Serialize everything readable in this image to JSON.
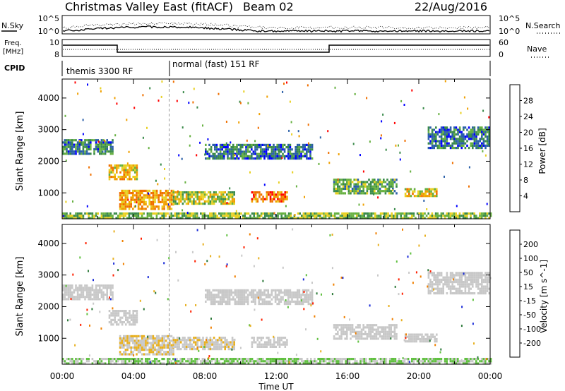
{
  "header": {
    "radar": "Christmas Valley East (fitACF)",
    "beam": "Beam 02",
    "date": "22/Aug/2016"
  },
  "noise_panel": {
    "left_label": "N.Sky",
    "right_label": "N.Search",
    "left_ticks": [
      "10^5",
      "10^0"
    ],
    "right_ticks": [
      "10^5",
      "10^0"
    ]
  },
  "freq_panel": {
    "left_label_1": "Freq.",
    "left_label_2": "[MHz]",
    "right_label": "Nave",
    "left_ticks": [
      "10",
      "8"
    ],
    "right_ticks": [
      "60",
      "0"
    ]
  },
  "cpid_panel": {
    "label": "CPID",
    "programs": [
      "themis 3300 RF",
      "normal (fast) 151 RF"
    ]
  },
  "colors": {
    "power_scale": [
      "#0000ff",
      "#2a5fa8",
      "#3a8a4a",
      "#66b040",
      "#e8d020",
      "#f0a000",
      "#f07000",
      "#ff0000"
    ],
    "velocity_scale": [
      "#1a2bd8",
      "#2d7a3a",
      "#60c040",
      "#c8c8c8",
      "#e8b020",
      "#f08000",
      "#ff2000"
    ]
  },
  "chart_data": [
    {
      "type": "heatmap",
      "name": "power",
      "ylabel": "Slant Range [km]",
      "yticks": [
        "1000",
        "2000",
        "3000",
        "4000"
      ],
      "ylim": [
        180,
        4600
      ],
      "colorbar_label": "Power [dB]",
      "colorbar_ticks": [
        "4",
        "8",
        "12",
        "16",
        "20",
        "24",
        "28"
      ],
      "clim": [
        0,
        32
      ],
      "bands": [
        {
          "t0": 0.0,
          "t1": 2.8,
          "r0": 2200,
          "r1": 2700,
          "v": 9
        },
        {
          "t0": 2.6,
          "t1": 4.2,
          "r0": 1400,
          "r1": 1900,
          "v": 20
        },
        {
          "t0": 3.2,
          "t1": 6.2,
          "r0": 500,
          "r1": 1100,
          "v": 22
        },
        {
          "t0": 6.2,
          "t1": 9.6,
          "r0": 650,
          "r1": 1050,
          "v": 16
        },
        {
          "t0": 10.6,
          "t1": 12.6,
          "r0": 750,
          "r1": 1050,
          "v": 25
        },
        {
          "t0": 15.2,
          "t1": 18.8,
          "r0": 950,
          "r1": 1450,
          "v": 12
        },
        {
          "t0": 19.2,
          "t1": 21.0,
          "r0": 900,
          "r1": 1150,
          "v": 19
        },
        {
          "t0": 8.0,
          "t1": 14.0,
          "r0": 2100,
          "r1": 2550,
          "v": 8
        },
        {
          "t0": 20.5,
          "t1": 24.0,
          "r0": 2400,
          "r1": 3100,
          "v": 8
        },
        {
          "t0": 0.0,
          "t1": 24.0,
          "r0": 200,
          "r1": 380,
          "v": 14
        }
      ]
    },
    {
      "type": "heatmap",
      "name": "velocity",
      "ylabel": "Slant Range [km]",
      "yticks": [
        "1000",
        "2000",
        "3000",
        "4000"
      ],
      "ylim": [
        180,
        4600
      ],
      "colorbar_label": "Velocity [m s^-1]",
      "colorbar_ticks": [
        "200",
        "100",
        "50",
        "15",
        "-15",
        "-50",
        "-100",
        "-200"
      ],
      "clim": [
        -250,
        250
      ],
      "bands": [
        {
          "t0": 0.0,
          "t1": 2.8,
          "r0": 2200,
          "r1": 2700,
          "v": 0
        },
        {
          "t0": 2.6,
          "t1": 4.2,
          "r0": 1400,
          "r1": 1900,
          "v": 0
        },
        {
          "t0": 3.2,
          "t1": 6.2,
          "r0": 500,
          "r1": 1100,
          "v": 30
        },
        {
          "t0": 6.2,
          "t1": 9.6,
          "r0": 650,
          "r1": 1050,
          "v": 20
        },
        {
          "t0": 10.6,
          "t1": 12.6,
          "r0": 750,
          "r1": 1050,
          "v": 0
        },
        {
          "t0": 15.2,
          "t1": 18.8,
          "r0": 950,
          "r1": 1450,
          "v": 0
        },
        {
          "t0": 19.2,
          "t1": 21.0,
          "r0": 900,
          "r1": 1150,
          "v": 0
        },
        {
          "t0": 8.0,
          "t1": 14.0,
          "r0": 2100,
          "r1": 2550,
          "v": 0
        },
        {
          "t0": 20.5,
          "t1": 24.0,
          "r0": 2400,
          "r1": 3100,
          "v": 0
        },
        {
          "t0": 0.0,
          "t1": 24.0,
          "r0": 200,
          "r1": 380,
          "v": -40
        }
      ]
    }
  ],
  "time_axis": {
    "ticks": [
      "00:00",
      "04:00",
      "08:00",
      "12:00",
      "16:00",
      "20:00",
      "00:00"
    ],
    "label": "Time UT"
  }
}
